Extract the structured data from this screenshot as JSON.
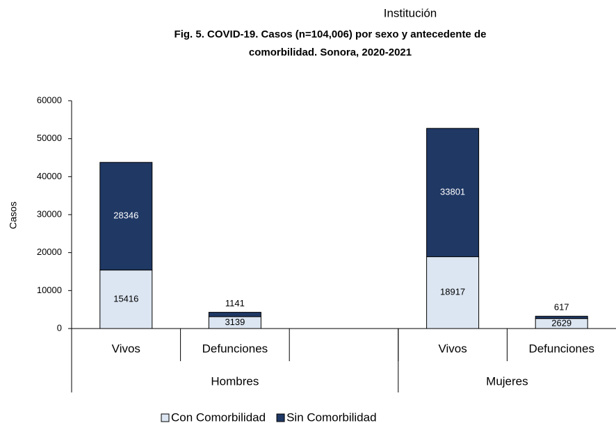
{
  "chart_data": {
    "type": "stacked_bar",
    "header": "Institución",
    "title": [
      "Fig. 5. COVID-19. Casos (n=104,006) por sexo y antecedente de",
      "comorbilidad. Sonora, 2020-2021"
    ],
    "ylabel": "Casos",
    "categories": [
      "Vivos",
      "Defunciones",
      null,
      "Vivos",
      "Defunciones"
    ],
    "category_groups": [
      {
        "label": "Hombres",
        "count": 3
      },
      {
        "label": "Mujeres",
        "count": 2
      }
    ],
    "series": [
      {
        "name": "Con Comorbilidad",
        "color": "#dce6f2",
        "values": [
          15416,
          3139,
          null,
          18917,
          2629
        ]
      },
      {
        "name": "Sin Comorbilidad",
        "color": "#1f3864",
        "values": [
          28346,
          1141,
          null,
          33801,
          617
        ]
      }
    ],
    "ylim": [
      0,
      60000
    ],
    "yticks": [
      0,
      10000,
      20000,
      30000,
      40000,
      50000,
      60000
    ]
  }
}
